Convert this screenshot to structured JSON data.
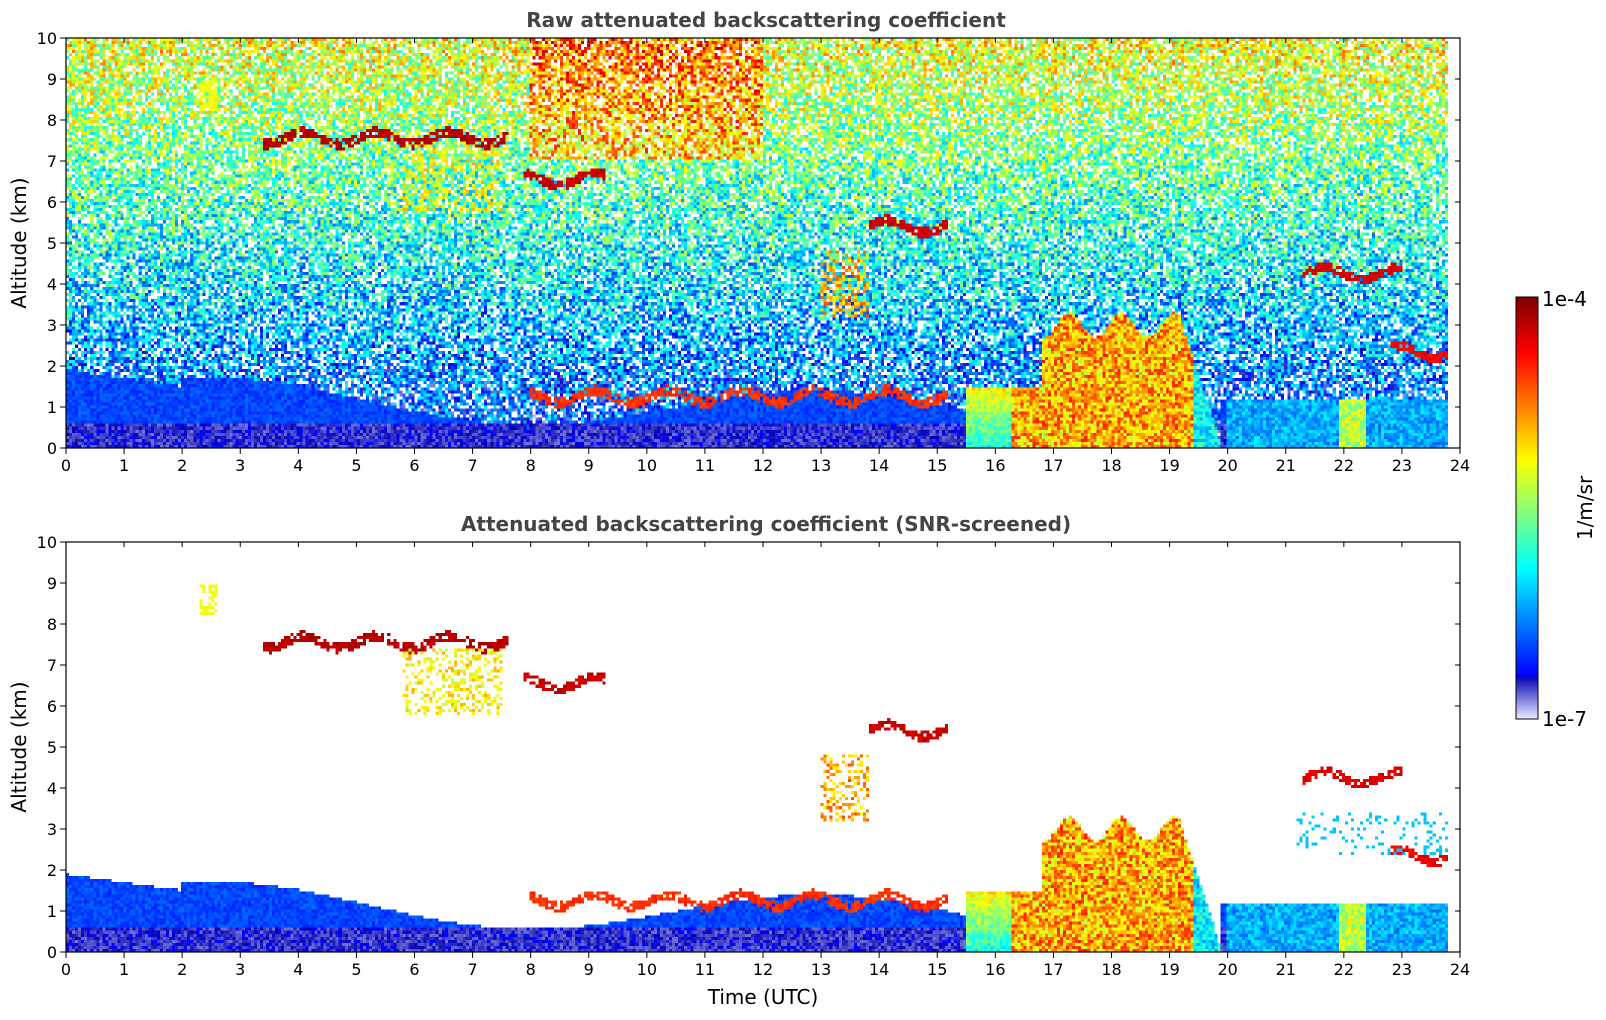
{
  "chart_data": [
    {
      "type": "heatmap",
      "title": "Raw attenuated backscattering coefficient",
      "xlabel": "",
      "ylabel": "Altitude (km)",
      "xlim": [
        0,
        24
      ],
      "ylim": [
        0,
        10
      ],
      "x_ticks": [
        "0",
        "1",
        "2",
        "3",
        "4",
        "5",
        "6",
        "7",
        "8",
        "9",
        "10",
        "11",
        "12",
        "13",
        "14",
        "15",
        "16",
        "17",
        "18",
        "19",
        "20",
        "21",
        "22",
        "23",
        "24"
      ],
      "y_ticks": [
        "0",
        "1",
        "2",
        "3",
        "4",
        "5",
        "6",
        "7",
        "8",
        "9",
        "10"
      ],
      "data_extent_x": [
        0,
        23.8
      ],
      "screened": false,
      "features": [
        {
          "kind": "boundary_layer",
          "t0": 0,
          "t1": 15.5,
          "top_km": 1.5,
          "level": 0.12
        },
        {
          "kind": "cloud_band",
          "t0": 3.4,
          "t1": 7.6,
          "alt_km": 7.55,
          "level": 0.97
        },
        {
          "kind": "cloud_band",
          "t0": 7.9,
          "t1": 9.3,
          "alt_km": 6.55,
          "level": 0.95
        },
        {
          "kind": "cloud_band",
          "t0": 13.8,
          "t1": 15.2,
          "alt_km": 5.4,
          "level": 0.95
        },
        {
          "kind": "cloud_band",
          "t0": 21.3,
          "t1": 23.0,
          "alt_km": 4.25,
          "level": 0.93
        },
        {
          "kind": "cloud_band",
          "t0": 22.8,
          "t1": 23.8,
          "alt_km": 2.35,
          "level": 0.9
        },
        {
          "kind": "thick_cloud",
          "t0": 15.5,
          "t1": 19.9,
          "top_km": 3.0,
          "level": 0.75
        },
        {
          "kind": "low_cloud",
          "t0": 8.0,
          "t1": 15.2,
          "alt_km": 1.25,
          "level": 0.85
        }
      ]
    },
    {
      "type": "heatmap",
      "title": "Attenuated backscattering coefficient (SNR-screened)",
      "xlabel": "Time (UTC)",
      "ylabel": "Altitude (km)",
      "xlim": [
        0,
        24
      ],
      "ylim": [
        0,
        10
      ],
      "x_ticks": [
        "0",
        "1",
        "2",
        "3",
        "4",
        "5",
        "6",
        "7",
        "8",
        "9",
        "10",
        "11",
        "12",
        "13",
        "14",
        "15",
        "16",
        "17",
        "18",
        "19",
        "20",
        "21",
        "22",
        "23",
        "24"
      ],
      "y_ticks": [
        "0",
        "1",
        "2",
        "3",
        "4",
        "5",
        "6",
        "7",
        "8",
        "9",
        "10"
      ],
      "data_extent_x": [
        0,
        23.8
      ],
      "screened": true
    }
  ],
  "colorbar": {
    "label": "1/m/sr",
    "max_label": "1e-4",
    "min_label": "1e-7",
    "scale": "log",
    "colormap": "jet",
    "range": [
      1e-07,
      0.0001
    ]
  }
}
